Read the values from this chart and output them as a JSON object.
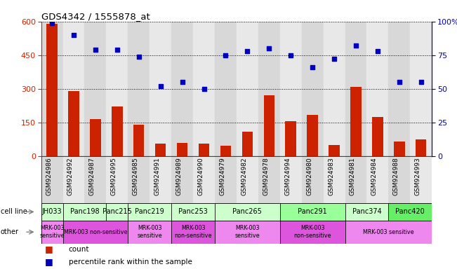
{
  "title": "GDS4342 / 1555878_at",
  "samples": [
    "GSM924986",
    "GSM924992",
    "GSM924987",
    "GSM924995",
    "GSM924985",
    "GSM924991",
    "GSM924989",
    "GSM924990",
    "GSM924979",
    "GSM924982",
    "GSM924978",
    "GSM924994",
    "GSM924980",
    "GSM924983",
    "GSM924981",
    "GSM924984",
    "GSM924988",
    "GSM924993"
  ],
  "counts": [
    590,
    290,
    165,
    220,
    140,
    55,
    60,
    55,
    45,
    110,
    270,
    155,
    185,
    50,
    310,
    175,
    65,
    75
  ],
  "percentiles": [
    99,
    90,
    79,
    79,
    74,
    52,
    55,
    50,
    75,
    78,
    80,
    75,
    66,
    72,
    82,
    78,
    55,
    55
  ],
  "cell_lines": [
    {
      "name": "JH033",
      "start": 0,
      "end": 1,
      "color": "#ccffcc"
    },
    {
      "name": "Panc198",
      "start": 1,
      "end": 3,
      "color": "#ccffcc"
    },
    {
      "name": "Panc215",
      "start": 3,
      "end": 4,
      "color": "#ccffcc"
    },
    {
      "name": "Panc219",
      "start": 4,
      "end": 6,
      "color": "#ccffcc"
    },
    {
      "name": "Panc253",
      "start": 6,
      "end": 8,
      "color": "#ccffcc"
    },
    {
      "name": "Panc265",
      "start": 8,
      "end": 11,
      "color": "#ccffcc"
    },
    {
      "name": "Panc291",
      "start": 11,
      "end": 14,
      "color": "#99ff99"
    },
    {
      "name": "Panc374",
      "start": 14,
      "end": 16,
      "color": "#ccffcc"
    },
    {
      "name": "Panc420",
      "start": 16,
      "end": 18,
      "color": "#66ee66"
    }
  ],
  "other_annotations": [
    {
      "label": "MRK-003\nsensitive",
      "start": 0,
      "end": 1,
      "color": "#ee88ee"
    },
    {
      "label": "MRK-003 non-sensitive",
      "start": 1,
      "end": 4,
      "color": "#dd55dd"
    },
    {
      "label": "MRK-003\nsensitive",
      "start": 4,
      "end": 6,
      "color": "#ee88ee"
    },
    {
      "label": "MRK-003\nnon-sensitive",
      "start": 6,
      "end": 8,
      "color": "#dd55dd"
    },
    {
      "label": "MRK-003\nsensitive",
      "start": 8,
      "end": 11,
      "color": "#ee88ee"
    },
    {
      "label": "MRK-003\nnon-sensitive",
      "start": 11,
      "end": 14,
      "color": "#dd55dd"
    },
    {
      "label": "MRK-003 sensitive",
      "start": 14,
      "end": 18,
      "color": "#ee88ee"
    }
  ],
  "bar_color": "#cc2200",
  "dot_color": "#0000bb",
  "ylim_left": [
    0,
    600
  ],
  "ylim_right": [
    0,
    100
  ],
  "yticks_left": [
    0,
    150,
    300,
    450,
    600
  ],
  "yticks_right": [
    0,
    25,
    50,
    75,
    100
  ],
  "col_bg_even": "#d8d8d8",
  "col_bg_odd": "#e8e8e8"
}
